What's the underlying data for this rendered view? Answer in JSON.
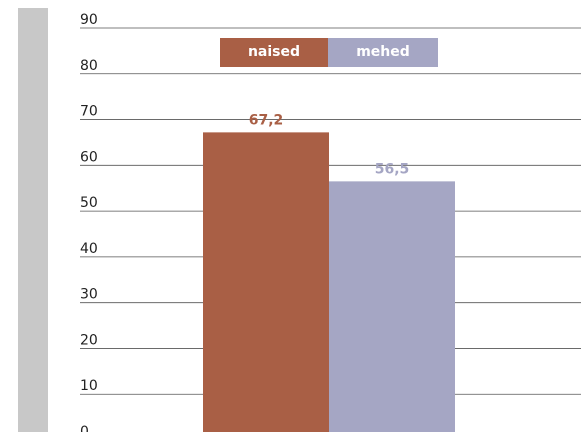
{
  "chart_data": {
    "type": "bar",
    "categories": [
      null
    ],
    "series": [
      {
        "name": "naised",
        "color": "#a95f45",
        "values": [
          67.2
        ],
        "value_labels": [
          "67,2"
        ]
      },
      {
        "name": "mehed",
        "color": "#a5a6c4",
        "values": [
          56.5
        ],
        "value_labels": [
          "56,5"
        ]
      }
    ],
    "ylim": [
      0,
      90
    ],
    "yticks": [
      0,
      10,
      20,
      30,
      40,
      50,
      60,
      70,
      80,
      90
    ],
    "grid": true
  }
}
